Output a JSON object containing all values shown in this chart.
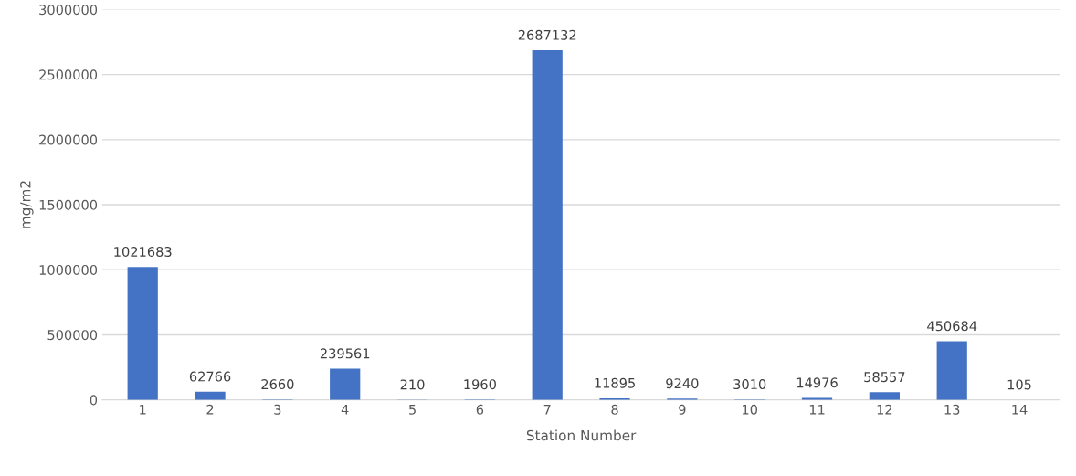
{
  "chart_data": {
    "type": "bar",
    "xlabel": "Station Number",
    "ylabel": "mg/m2",
    "categories": [
      "1",
      "2",
      "3",
      "4",
      "5",
      "6",
      "7",
      "8",
      "9",
      "10",
      "11",
      "12",
      "13",
      "14"
    ],
    "values": [
      1021683,
      62766,
      2660,
      239561,
      210,
      1960,
      2687132,
      11895,
      9240,
      3010,
      14976,
      58557,
      450684,
      105
    ],
    "color": "#4472c4",
    "ylim": [
      0,
      3000000
    ],
    "yticks": [
      0,
      500000,
      1000000,
      1500000,
      2000000,
      2500000,
      3000000
    ],
    "grid": "y",
    "data_labels": true
  }
}
